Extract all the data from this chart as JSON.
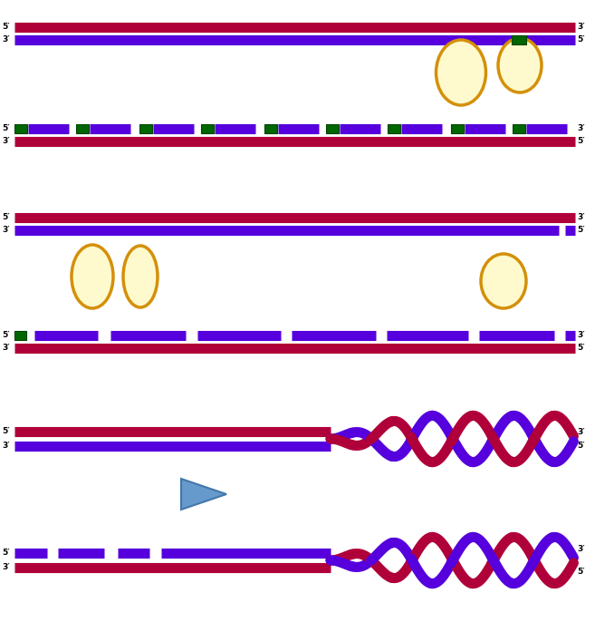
{
  "bg_color": "#ffffff",
  "crimson": "#b0003a",
  "blue": "#5500dd",
  "green": "#006600",
  "orange_fill": "#fffacd",
  "orange_edge": "#d4900a",
  "fig_width": 6.57,
  "fig_height": 6.86,
  "dpi": 100
}
